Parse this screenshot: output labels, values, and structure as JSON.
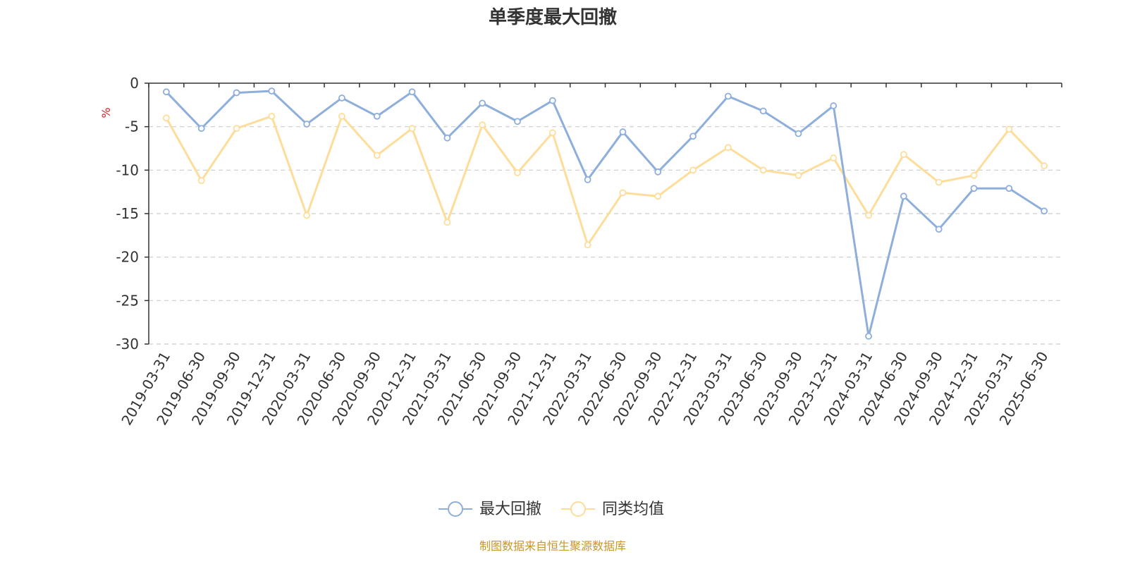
{
  "title": "单季度最大回撤",
  "source_text": "制图数据来自恒生聚源数据库",
  "colors": {
    "series1": "#8eaedb",
    "series2": "#fedd9a",
    "unit": "#e02020",
    "source": "#c8952b",
    "axis": "#333333",
    "grid": "#cccccc"
  },
  "chart_data": {
    "type": "line",
    "title": "单季度最大回撤",
    "ylabel": "%",
    "xlabel": "",
    "ylim": [
      -30,
      0
    ],
    "yticks": [
      0,
      -5,
      -10,
      -15,
      -20,
      -25,
      -30
    ],
    "grid": "horizontal dashed",
    "legend_position": "bottom-center",
    "categories": [
      "2019-03-31",
      "2019-06-30",
      "2019-09-30",
      "2019-12-31",
      "2020-03-31",
      "2020-06-30",
      "2020-09-30",
      "2020-12-31",
      "2021-03-31",
      "2021-06-30",
      "2021-09-30",
      "2021-12-31",
      "2022-03-31",
      "2022-06-30",
      "2022-09-30",
      "2022-12-31",
      "2023-03-31",
      "2023-06-30",
      "2023-09-30",
      "2023-12-31",
      "2024-03-31",
      "2024-06-30",
      "2024-09-30",
      "2024-12-31",
      "2025-03-31",
      "2025-06-30"
    ],
    "series": [
      {
        "name": "最大回撤",
        "values": [
          -1.0,
          -5.2,
          -1.1,
          -0.9,
          -4.7,
          -1.7,
          -3.8,
          -1.0,
          -6.3,
          -2.3,
          -4.4,
          -2.0,
          -11.1,
          -5.6,
          -10.2,
          -6.1,
          -1.5,
          -3.2,
          -5.8,
          -2.6,
          -29.1,
          -13.0,
          -16.8,
          -12.1,
          -12.1,
          -14.7
        ]
      },
      {
        "name": "同类均值",
        "values": [
          -4.0,
          -11.2,
          -5.2,
          -3.8,
          -15.2,
          -3.8,
          -8.3,
          -5.2,
          -16.0,
          -4.8,
          -10.3,
          -5.7,
          -18.6,
          -12.6,
          -13.0,
          -10.0,
          -7.4,
          -10.0,
          -10.6,
          -8.6,
          -15.2,
          -8.2,
          -11.4,
          -10.6,
          -5.3,
          -9.5
        ]
      }
    ]
  }
}
